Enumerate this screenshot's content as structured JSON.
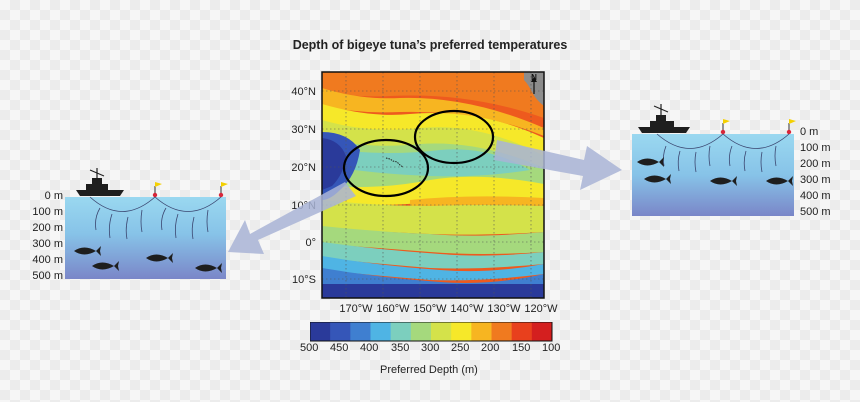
{
  "title": "Depth of bigeye tuna’s preferred temperatures",
  "map": {
    "lat_labels": [
      "40°N",
      "30°N",
      "20°N",
      "10°N",
      "0°",
      "10°S"
    ],
    "lon_labels": [
      "170°W",
      "160°W",
      "150°W",
      "140°W",
      "130°W",
      "120°W"
    ],
    "north": "N"
  },
  "colorbar": {
    "labels": [
      "500",
      "450",
      "400",
      "350",
      "300",
      "250",
      "200",
      "150",
      "100"
    ],
    "colors": [
      "#2a3a9a",
      "#3556b8",
      "#3f7fd0",
      "#4fb4e4",
      "#7ccfbe",
      "#a5d97d",
      "#d4e24a",
      "#f6e829",
      "#f7b521",
      "#f07a1f",
      "#e8401d",
      "#d41f1f"
    ],
    "title": "Preferred Depth (m)"
  },
  "left_panel": {
    "depths": [
      "0 m",
      "100 m",
      "200 m",
      "300 m",
      "400 m",
      "500 m"
    ]
  },
  "right_panel": {
    "depths": [
      "0 m",
      "100 m",
      "200 m",
      "300 m",
      "400 m",
      "500 m"
    ]
  },
  "colors": {
    "water_top": "#9ad8f0",
    "water_bottom": "#7a86c8",
    "arrow": "#a9b4d6",
    "buoy": "#d8263a",
    "flag": "#f4d000"
  }
}
